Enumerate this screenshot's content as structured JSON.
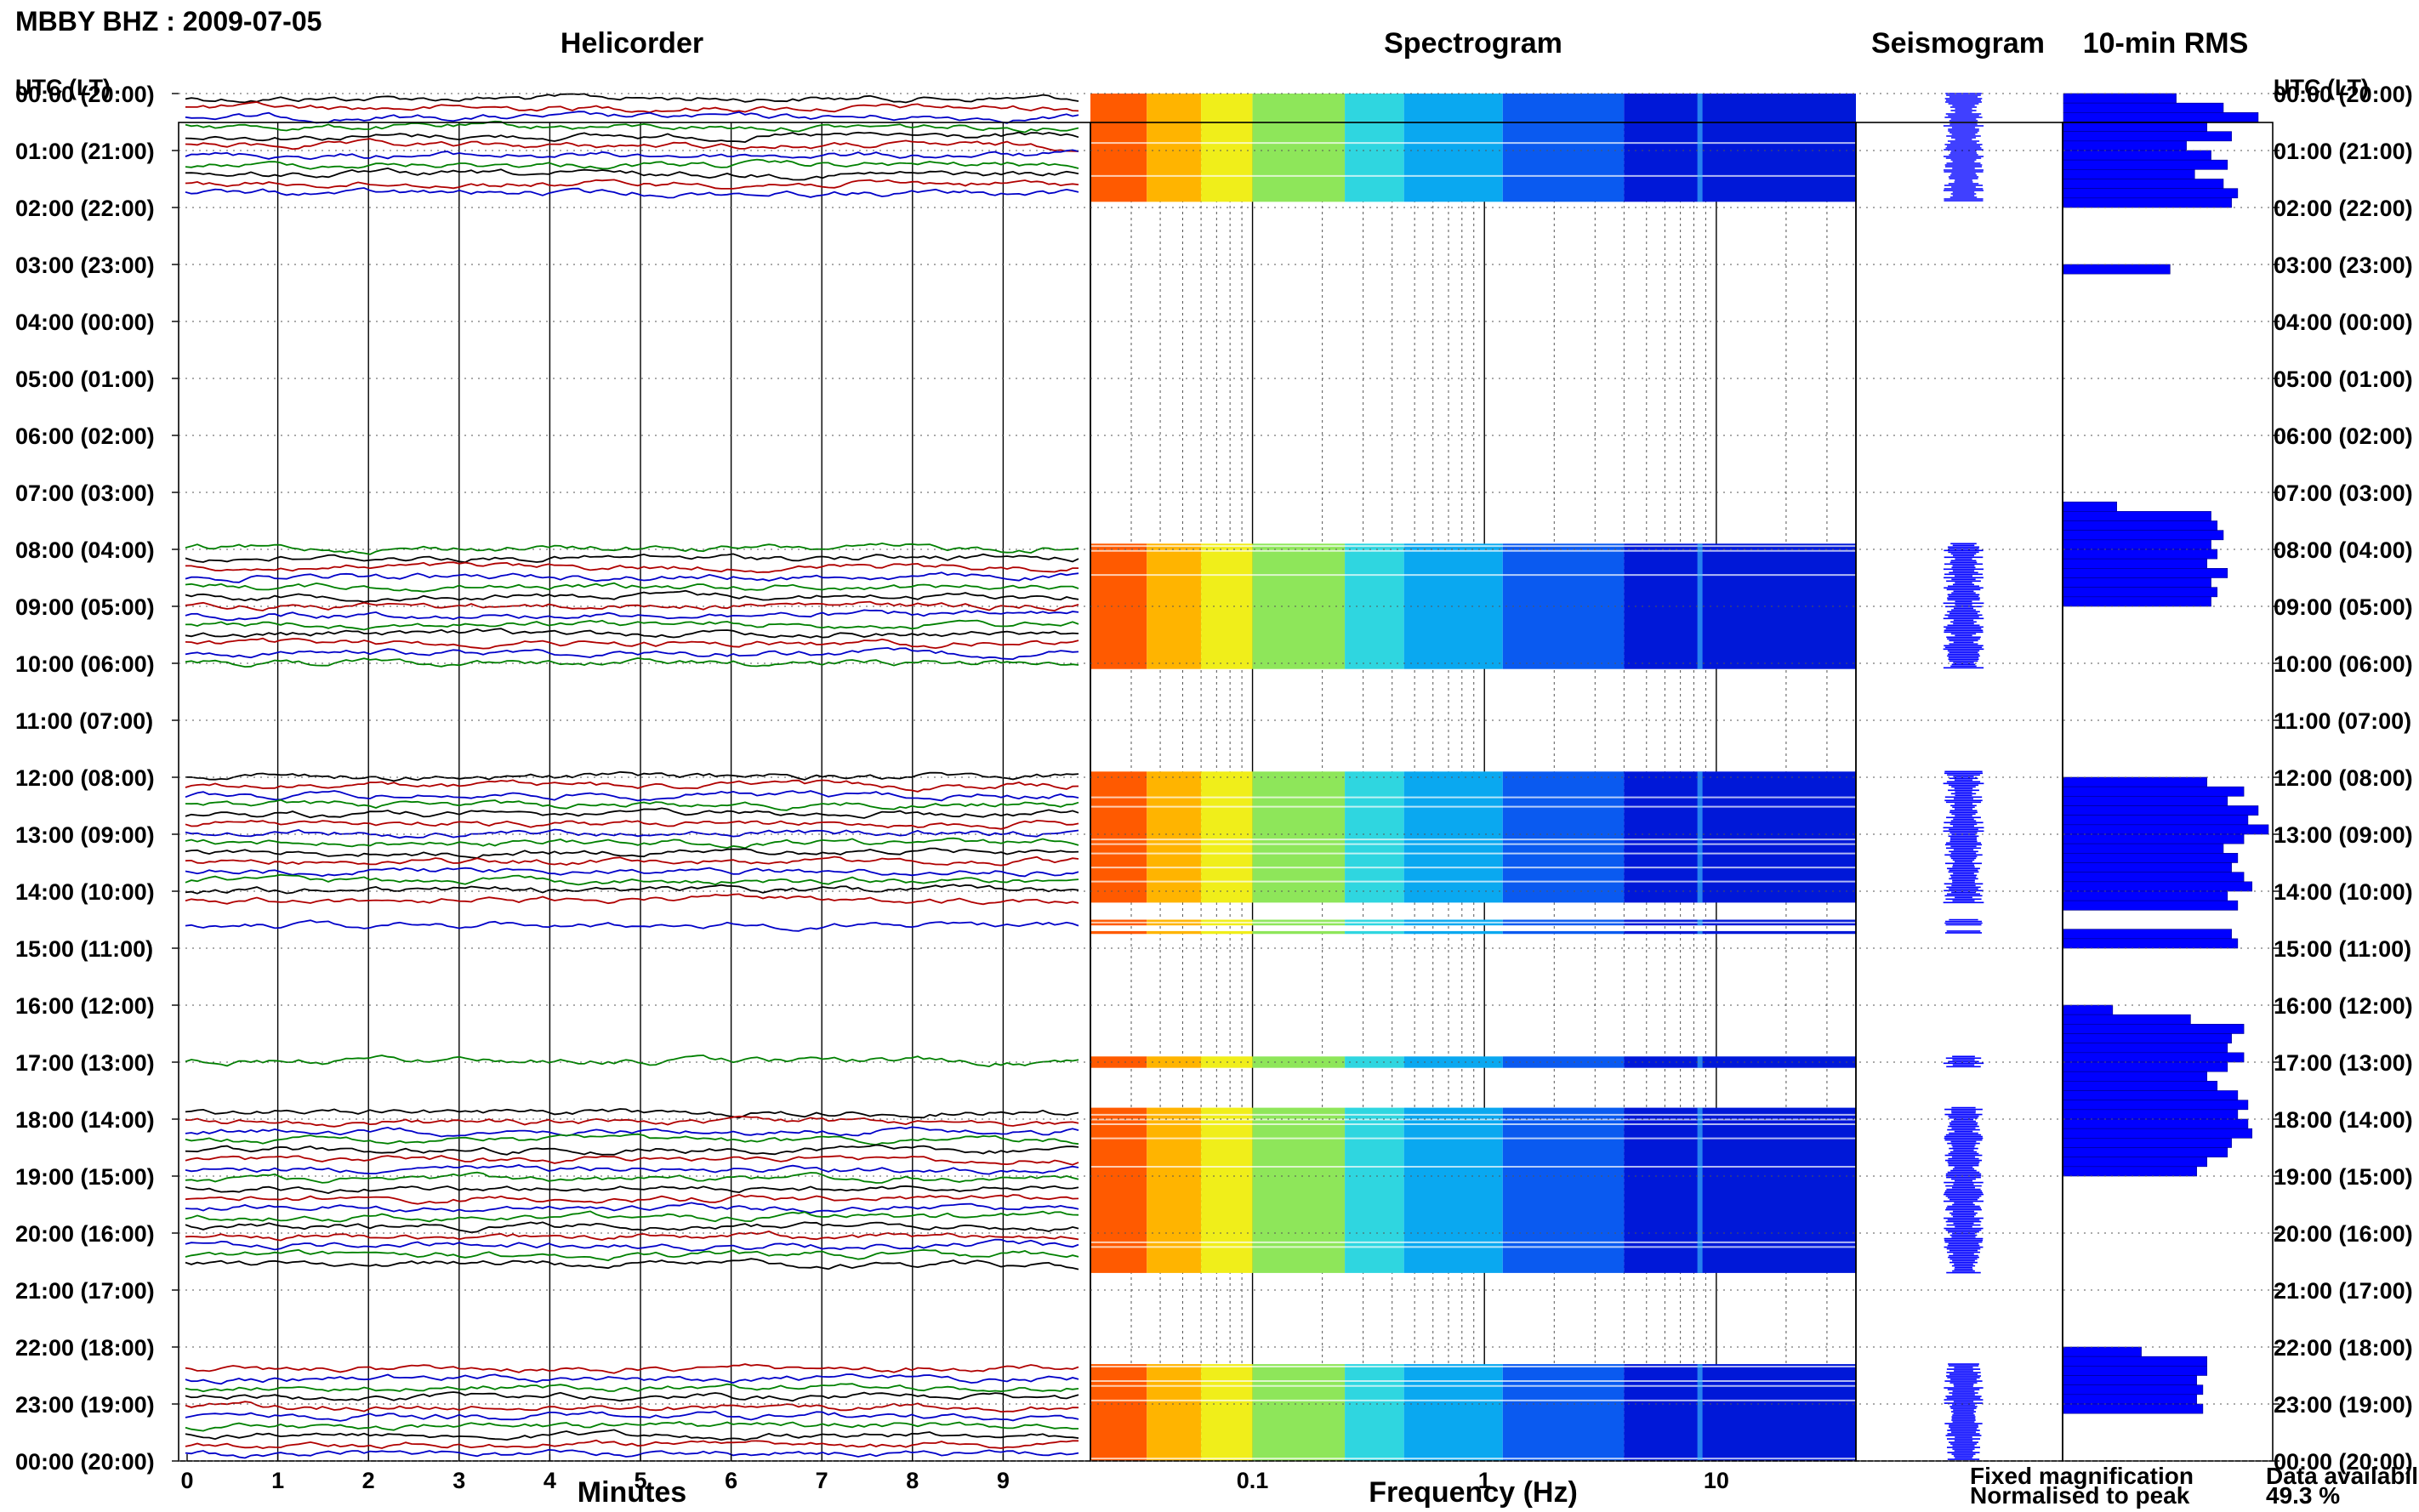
{
  "header": {
    "station_date": "MBBY BHZ : 2009-07-05"
  },
  "panels": {
    "helicorder": "Helicorder",
    "spectrogram": "Spectrogram",
    "seismogram": "Seismogram",
    "rms": "10-min RMS"
  },
  "axes": {
    "left_title": "UTC (LT)",
    "right_title": "UTC (LT)",
    "minutes_label": "Minutes",
    "frequency_label": "Frequency (Hz)",
    "minute_ticks": [
      "0",
      "1",
      "2",
      "3",
      "4",
      "5",
      "6",
      "7",
      "8",
      "9"
    ],
    "freq_ticks": [
      "0.1",
      "1",
      "10"
    ]
  },
  "legend": {
    "fixed": "Fixed magnification",
    "normalised": "Normalised to peak",
    "fixed_color": "#0000ff",
    "normalised_color": "#ff0000"
  },
  "availability": {
    "label": "Data availability",
    "value": "49.3 %"
  },
  "chart_data": {
    "type": "heatmap",
    "hour_labels": [
      "00:00 (20:00)",
      "01:00 (21:00)",
      "02:00 (22:00)",
      "03:00 (23:00)",
      "04:00 (00:00)",
      "05:00 (01:00)",
      "06:00 (02:00)",
      "07:00 (03:00)",
      "08:00 (04:00)",
      "09:00 (05:00)",
      "10:00 (06:00)",
      "11:00 (07:00)",
      "12:00 (08:00)",
      "13:00 (09:00)",
      "14:00 (10:00)",
      "15:00 (11:00)",
      "16:00 (12:00)",
      "17:00 (13:00)",
      "18:00 (14:00)",
      "19:00 (15:00)",
      "20:00 (16:00)",
      "21:00 (17:00)",
      "22:00 (18:00)",
      "23:00 (19:00)",
      "00:00 (20:00)"
    ],
    "data_segments_hours": [
      [
        0,
        1.9
      ],
      [
        7.9,
        10.1
      ],
      [
        11.9,
        14.2
      ],
      [
        14.5,
        14.6
      ],
      [
        14.7,
        14.75
      ],
      [
        16.9,
        17.1
      ],
      [
        17.8,
        20.7
      ],
      [
        22.3,
        24.0
      ]
    ],
    "rms_relative": [
      0.55,
      0.78,
      0.95,
      0.7,
      0.82,
      0.6,
      0.72,
      0.8,
      0.64,
      0.78,
      0.85,
      0.82,
      0,
      0,
      0,
      0,
      0,
      0,
      0.52,
      0,
      0,
      0,
      0,
      0,
      0,
      0,
      0,
      0,
      0,
      0,
      0,
      0,
      0,
      0,
      0,
      0,
      0,
      0,
      0,
      0,
      0,
      0,
      0,
      0.26,
      0.72,
      0.75,
      0.78,
      0.72,
      0.75,
      0.7,
      0.8,
      0.72,
      0.75,
      0.72,
      0,
      0,
      0,
      0,
      0,
      0,
      0,
      0,
      0,
      0,
      0,
      0,
      0,
      0,
      0,
      0,
      0,
      0,
      0.7,
      0.88,
      0.8,
      0.95,
      0.9,
      1.0,
      0.88,
      0.78,
      0.85,
      0.82,
      0.88,
      0.92,
      0.8,
      0.85,
      0,
      0,
      0.82,
      0.85,
      0,
      0,
      0,
      0,
      0,
      0,
      0.24,
      0.62,
      0.88,
      0.82,
      0.8,
      0.88,
      0.8,
      0.7,
      0.75,
      0.85,
      0.9,
      0.85,
      0.9,
      0.92,
      0.82,
      0.8,
      0.7,
      0.65,
      0,
      0,
      0,
      0,
      0,
      0,
      0,
      0,
      0,
      0,
      0,
      0,
      0,
      0,
      0,
      0,
      0,
      0,
      0.38,
      0.7,
      0.7,
      0.65,
      0.68,
      0.65,
      0.68
    ],
    "helicorder_line_colors": [
      "#000000",
      "#b00000",
      "#0000c8",
      "#008000"
    ],
    "spectrogram_colors": [
      "#ff5a00",
      "#ffb400",
      "#f0ee1a",
      "#8ee65a",
      "#2fd6e0",
      "#0aa8f0",
      "#0a5af0",
      "#0018d8"
    ]
  }
}
